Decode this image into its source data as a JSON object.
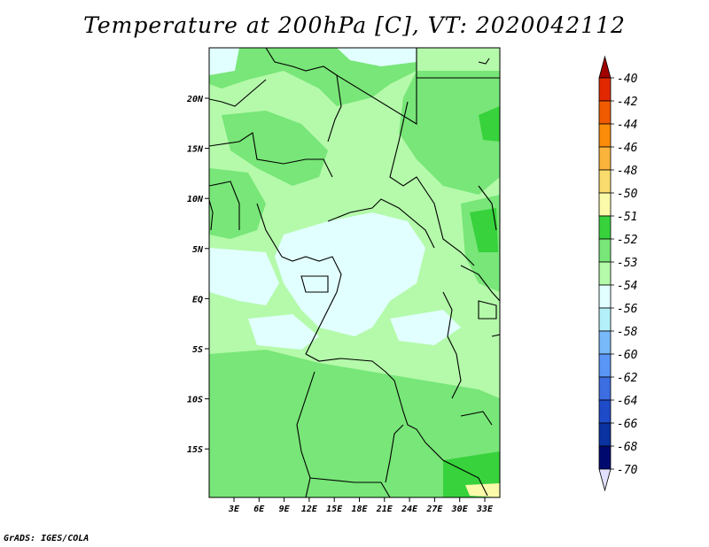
{
  "title": "Temperature at 200hPa [C], VT: 2020042112",
  "credit": "GrADS: IGES/COLA",
  "map": {
    "lon_labels": [
      "3E",
      "6E",
      "9E",
      "12E",
      "15E",
      "18E",
      "21E",
      "24E",
      "27E",
      "30E",
      "33E"
    ],
    "lat_labels": [
      "20N",
      "15N",
      "10N",
      "5N",
      "EQ",
      "5S",
      "10S",
      "15S"
    ]
  },
  "colorbar": {
    "levels": [
      {
        "label": "-40",
        "color": "#a00000"
      },
      {
        "label": "-42",
        "color": "#e12800"
      },
      {
        "label": "-44",
        "color": "#f05a00"
      },
      {
        "label": "-46",
        "color": "#fa8c0a"
      },
      {
        "label": "-48",
        "color": "#fab43c"
      },
      {
        "label": "-50",
        "color": "#fadc6e"
      },
      {
        "label": "-51",
        "color": "#fafaaa"
      },
      {
        "label": "-52",
        "color": "#37d23c"
      },
      {
        "label": "-53",
        "color": "#78e678"
      },
      {
        "label": "-54",
        "color": "#b4faaa"
      },
      {
        "label": "-56",
        "color": "#e1ffff"
      },
      {
        "label": "-58",
        "color": "#b4f0fa"
      },
      {
        "label": "-60",
        "color": "#78b9fa"
      },
      {
        "label": "-62",
        "color": "#5a96f5"
      },
      {
        "label": "-64",
        "color": "#3c6ee1"
      },
      {
        "label": "-66",
        "color": "#1e4bc8"
      },
      {
        "label": "-68",
        "color": "#0a32a0"
      },
      {
        "label": "-70",
        "color": "#000a6e"
      }
    ],
    "top_cap_color": "#a00000",
    "bottom_cap_color": "#e1e1ff"
  }
}
